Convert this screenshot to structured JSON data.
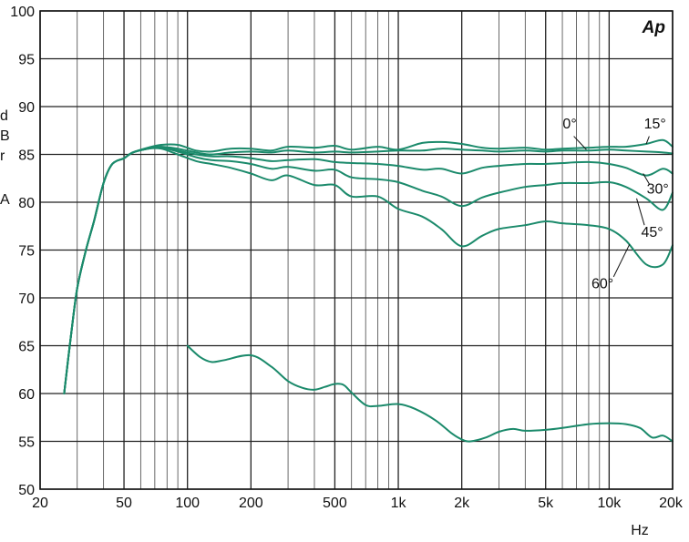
{
  "chart_data": {
    "type": "line",
    "logo": "Ap",
    "xlabel": "Hz",
    "y_axis_label_fragments": [
      "d",
      "B",
      "r",
      "A"
    ],
    "x_scale": "log",
    "xlim": [
      20,
      20000
    ],
    "ylim": [
      50,
      100
    ],
    "y_ticks": [
      50,
      55,
      60,
      65,
      70,
      75,
      80,
      85,
      90,
      95,
      100
    ],
    "x_ticks": [
      {
        "value": 20,
        "label": "20"
      },
      {
        "value": 50,
        "label": "50"
      },
      {
        "value": 100,
        "label": "100"
      },
      {
        "value": 200,
        "label": "200"
      },
      {
        "value": 500,
        "label": "500"
      },
      {
        "value": 1000,
        "label": "1k"
      },
      {
        "value": 2000,
        "label": "2k"
      },
      {
        "value": 5000,
        "label": "5k"
      },
      {
        "value": 10000,
        "label": "10k"
      },
      {
        "value": 20000,
        "label": "20k"
      }
    ],
    "grid": true,
    "line_color": "#1b8a6b",
    "series": [
      {
        "name": "0°",
        "label_anchor": {
          "x": 5000,
          "y": 85.6
        },
        "points": [
          [
            26,
            60
          ],
          [
            28,
            66
          ],
          [
            30,
            71
          ],
          [
            33,
            75
          ],
          [
            36,
            78
          ],
          [
            40,
            82
          ],
          [
            44,
            84
          ],
          [
            50,
            84.6
          ],
          [
            55,
            85.2
          ],
          [
            65,
            85.6
          ],
          [
            75,
            85.8
          ],
          [
            90,
            85.6
          ],
          [
            110,
            85.2
          ],
          [
            130,
            85.0
          ],
          [
            160,
            85.2
          ],
          [
            200,
            85.3
          ],
          [
            250,
            85.2
          ],
          [
            300,
            85.4
          ],
          [
            400,
            85.2
          ],
          [
            500,
            85.3
          ],
          [
            600,
            85.2
          ],
          [
            800,
            85.3
          ],
          [
            1000,
            85.4
          ],
          [
            1300,
            85.4
          ],
          [
            1600,
            85.6
          ],
          [
            2000,
            85.5
          ],
          [
            2500,
            85.4
          ],
          [
            3000,
            85.3
          ],
          [
            4000,
            85.4
          ],
          [
            5000,
            85.3
          ],
          [
            6000,
            85.4
          ],
          [
            8000,
            85.4
          ],
          [
            10000,
            85.5
          ],
          [
            12000,
            85.4
          ],
          [
            15000,
            85.3
          ],
          [
            18000,
            85.2
          ],
          [
            20000,
            85.1
          ]
        ]
      },
      {
        "name": "15°",
        "label_anchor": {
          "x": 5000,
          "y": 85.9
        },
        "points": [
          [
            26,
            60
          ],
          [
            28,
            66
          ],
          [
            30,
            71
          ],
          [
            33,
            75
          ],
          [
            36,
            78
          ],
          [
            40,
            82
          ],
          [
            44,
            84
          ],
          [
            50,
            84.6
          ],
          [
            55,
            85.2
          ],
          [
            65,
            85.7
          ],
          [
            75,
            86.0
          ],
          [
            90,
            86.0
          ],
          [
            110,
            85.4
          ],
          [
            130,
            85.3
          ],
          [
            160,
            85.6
          ],
          [
            200,
            85.6
          ],
          [
            250,
            85.4
          ],
          [
            300,
            85.8
          ],
          [
            400,
            85.7
          ],
          [
            500,
            85.9
          ],
          [
            600,
            85.5
          ],
          [
            800,
            85.8
          ],
          [
            1000,
            85.5
          ],
          [
            1300,
            86.2
          ],
          [
            1600,
            86.3
          ],
          [
            2000,
            86.1
          ],
          [
            2500,
            85.7
          ],
          [
            3000,
            85.6
          ],
          [
            4000,
            85.7
          ],
          [
            5000,
            85.5
          ],
          [
            6000,
            85.6
          ],
          [
            8000,
            85.7
          ],
          [
            10000,
            85.8
          ],
          [
            12000,
            85.8
          ],
          [
            15000,
            86.1
          ],
          [
            18000,
            86.5
          ],
          [
            20000,
            85.8
          ]
        ]
      },
      {
        "name": "30°",
        "label_anchor": {
          "x": 5000,
          "y": 84.0
        },
        "points": [
          [
            26,
            60
          ],
          [
            28,
            66
          ],
          [
            30,
            71
          ],
          [
            33,
            75
          ],
          [
            36,
            78
          ],
          [
            40,
            82
          ],
          [
            44,
            84
          ],
          [
            50,
            84.6
          ],
          [
            55,
            85.2
          ],
          [
            65,
            85.6
          ],
          [
            75,
            85.8
          ],
          [
            90,
            85.4
          ],
          [
            110,
            85.0
          ],
          [
            130,
            84.8
          ],
          [
            160,
            84.8
          ],
          [
            200,
            84.6
          ],
          [
            250,
            84.3
          ],
          [
            300,
            84.4
          ],
          [
            400,
            84.5
          ],
          [
            500,
            84.2
          ],
          [
            600,
            84.1
          ],
          [
            800,
            84.0
          ],
          [
            1000,
            83.8
          ],
          [
            1300,
            83.4
          ],
          [
            1600,
            83.5
          ],
          [
            2000,
            83.0
          ],
          [
            2500,
            83.6
          ],
          [
            3000,
            83.8
          ],
          [
            4000,
            84.0
          ],
          [
            5000,
            84.0
          ],
          [
            6000,
            84.1
          ],
          [
            8000,
            84.2
          ],
          [
            10000,
            84.0
          ],
          [
            12000,
            83.6
          ],
          [
            15000,
            82.8
          ],
          [
            18000,
            83.5
          ],
          [
            20000,
            83.0
          ]
        ]
      },
      {
        "name": "45°",
        "label_anchor": {
          "x": 5000,
          "y": 82.0
        },
        "points": [
          [
            26,
            60
          ],
          [
            28,
            66
          ],
          [
            30,
            71
          ],
          [
            33,
            75
          ],
          [
            36,
            78
          ],
          [
            40,
            82
          ],
          [
            44,
            84
          ],
          [
            50,
            84.6
          ],
          [
            55,
            85.2
          ],
          [
            65,
            85.6
          ],
          [
            75,
            85.7
          ],
          [
            90,
            85.3
          ],
          [
            110,
            84.7
          ],
          [
            130,
            84.4
          ],
          [
            160,
            84.3
          ],
          [
            200,
            84.0
          ],
          [
            250,
            83.5
          ],
          [
            300,
            83.7
          ],
          [
            400,
            83.3
          ],
          [
            500,
            83.4
          ],
          [
            600,
            82.6
          ],
          [
            800,
            82.4
          ],
          [
            1000,
            82.1
          ],
          [
            1300,
            81.2
          ],
          [
            1600,
            80.6
          ],
          [
            2000,
            79.6
          ],
          [
            2500,
            80.5
          ],
          [
            3000,
            81.0
          ],
          [
            4000,
            81.6
          ],
          [
            5000,
            81.8
          ],
          [
            6000,
            82.0
          ],
          [
            8000,
            82.0
          ],
          [
            10000,
            82.1
          ],
          [
            12000,
            81.6
          ],
          [
            15000,
            80.4
          ],
          [
            18000,
            79.2
          ],
          [
            20000,
            81.0
          ]
        ]
      },
      {
        "name": "60°",
        "label_anchor": {
          "x": 5000,
          "y": 77.5
        },
        "points": [
          [
            26,
            60
          ],
          [
            28,
            66
          ],
          [
            30,
            71
          ],
          [
            33,
            75
          ],
          [
            36,
            78
          ],
          [
            40,
            82
          ],
          [
            44,
            84
          ],
          [
            50,
            84.6
          ],
          [
            55,
            85.2
          ],
          [
            65,
            85.6
          ],
          [
            75,
            85.6
          ],
          [
            90,
            85.0
          ],
          [
            110,
            84.3
          ],
          [
            130,
            84.0
          ],
          [
            160,
            83.6
          ],
          [
            200,
            83.0
          ],
          [
            250,
            82.3
          ],
          [
            300,
            82.8
          ],
          [
            400,
            81.8
          ],
          [
            500,
            81.8
          ],
          [
            600,
            80.6
          ],
          [
            800,
            80.6
          ],
          [
            1000,
            79.3
          ],
          [
            1300,
            78.5
          ],
          [
            1600,
            77.2
          ],
          [
            2000,
            75.4
          ],
          [
            2500,
            76.5
          ],
          [
            3000,
            77.2
          ],
          [
            4000,
            77.6
          ],
          [
            5000,
            78.0
          ],
          [
            6000,
            77.8
          ],
          [
            8000,
            77.6
          ],
          [
            10000,
            77.2
          ],
          [
            12000,
            76.0
          ],
          [
            15000,
            73.5
          ],
          [
            18000,
            73.5
          ],
          [
            20000,
            75.5
          ]
        ]
      },
      {
        "name": "",
        "label_anchor": null,
        "points": [
          [
            100,
            65.0
          ],
          [
            115,
            63.8
          ],
          [
            130,
            63.3
          ],
          [
            150,
            63.5
          ],
          [
            200,
            64.0
          ],
          [
            250,
            62.8
          ],
          [
            300,
            61.3
          ],
          [
            350,
            60.6
          ],
          [
            400,
            60.4
          ],
          [
            450,
            60.7
          ],
          [
            500,
            61.0
          ],
          [
            550,
            60.9
          ],
          [
            600,
            60.1
          ],
          [
            700,
            58.8
          ],
          [
            800,
            58.7
          ],
          [
            1000,
            58.9
          ],
          [
            1200,
            58.4
          ],
          [
            1500,
            57.2
          ],
          [
            1800,
            55.8
          ],
          [
            2000,
            55.2
          ],
          [
            2200,
            55.0
          ],
          [
            2600,
            55.4
          ],
          [
            3000,
            56.0
          ],
          [
            3500,
            56.3
          ],
          [
            4000,
            56.1
          ],
          [
            5000,
            56.2
          ],
          [
            6000,
            56.4
          ],
          [
            8000,
            56.8
          ],
          [
            10000,
            56.9
          ],
          [
            12000,
            56.8
          ],
          [
            14000,
            56.4
          ],
          [
            16000,
            55.4
          ],
          [
            18000,
            55.6
          ],
          [
            20000,
            55.0
          ]
        ]
      }
    ],
    "annotations": [
      {
        "text": "0°",
        "x": 6500,
        "y": 87.7
      },
      {
        "text": "15°",
        "x": 16500,
        "y": 87.7
      },
      {
        "text": "30°",
        "x": 17000,
        "y": 80.9
      },
      {
        "text": "45°",
        "x": 16000,
        "y": 76.4
      },
      {
        "text": "60°",
        "x": 9300,
        "y": 71.0
      }
    ]
  }
}
